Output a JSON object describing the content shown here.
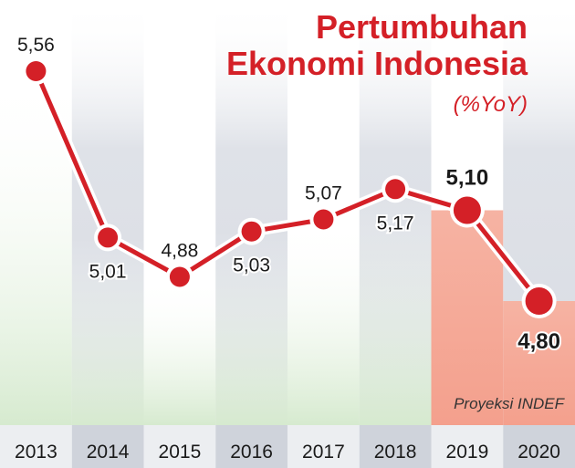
{
  "chart_data": {
    "type": "line",
    "title": "Pertumbuhan Ekonomi Indonesia",
    "title_lines": [
      "Pertumbuhan",
      "Ekonomi Indonesia"
    ],
    "subtitle": "(%YoY)",
    "annotation": "Proyeksi INDEF",
    "categories": [
      "2013",
      "2014",
      "2015",
      "2016",
      "2017",
      "2018",
      "2019",
      "2020"
    ],
    "values": [
      5.56,
      5.01,
      4.88,
      5.03,
      5.07,
      5.17,
      5.1,
      4.8
    ],
    "value_labels": [
      "5,56",
      "5,01",
      "4,88",
      "5,03",
      "5,07",
      "5,17",
      "5,10",
      "4,80"
    ],
    "projection_categories": [
      "2019",
      "2020"
    ],
    "colors": {
      "title": "#d42027",
      "line": "#d42027",
      "projection_bg": "#f4a797",
      "actual_bg": "#dcebd8",
      "column_dark": "#d9dce3",
      "column_light": "#f3f4f6"
    }
  }
}
